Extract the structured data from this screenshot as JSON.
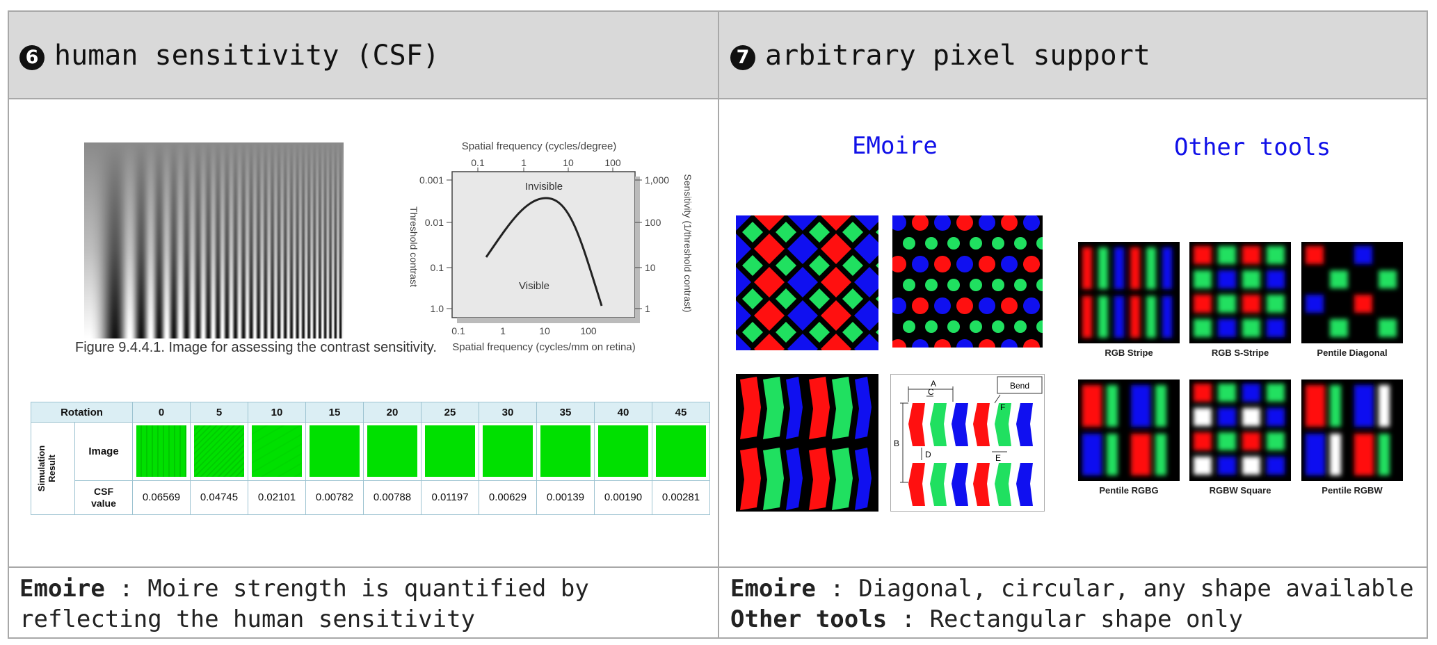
{
  "left_header": {
    "num": "6",
    "title": "human sensitivity (CSF)"
  },
  "right_header": {
    "num": "7",
    "title": "arbitrary pixel support"
  },
  "grating_caption": "Figure 9.4.4.1. Image for assessing the contrast sensitivity.",
  "csf_plot": {
    "top_axis_label": "Spatial frequency (cycles/degree)",
    "top_ticks": [
      "0.1",
      "1",
      "10",
      "100"
    ],
    "bottom_axis_label": "Spatial frequency (cycles/mm on retina)",
    "bottom_ticks": [
      "0.1",
      "1",
      "10",
      "100"
    ],
    "left_axis_label": "Threshold contrast",
    "left_ticks": [
      "0.001",
      "0.01",
      "0.1",
      "1.0"
    ],
    "right_axis_label": "Sensitivity (1/threshold contrast)",
    "right_ticks": [
      "1,000",
      "100",
      "10",
      "1"
    ],
    "region_invisible": "Invisible",
    "region_visible": "Visible"
  },
  "sim_table": {
    "rotation_label": "Rotation",
    "rotations": [
      "0",
      "5",
      "10",
      "15",
      "20",
      "25",
      "30",
      "35",
      "40",
      "45"
    ],
    "group_label": "Simulation Result",
    "image_label": "Image",
    "csf_label_line1": "CSF",
    "csf_label_line2": "value",
    "csf_values": [
      "0.06569",
      "0.04745",
      "0.02101",
      "0.00782",
      "0.00788",
      "0.01197",
      "0.00629",
      "0.00139",
      "0.00190",
      "0.00281"
    ],
    "swatch_color": "#00e000"
  },
  "emoire_heading": "EMoire",
  "other_tools_heading": "Other tools",
  "bend_diagram": {
    "bend": "Bend",
    "A": "A",
    "B": "B",
    "C": "C",
    "D": "D",
    "E": "E",
    "F": "F"
  },
  "other_panels": [
    "RGB Stripe",
    "RGB S-Stripe",
    "Pentile Diagonal",
    "Pentile  RGBG",
    "RGBW Square",
    "Pentile RGBW"
  ],
  "left_footer": {
    "bold": "Emoire",
    "text": " : Moire strength is quantified by reflecting the human sensitivity"
  },
  "right_footer": {
    "line1_bold": "Emoire",
    "line1_text": " : Diagonal, circular, any shape available",
    "line2_bold": "Other tools",
    "line2_text": " : Rectangular shape only"
  },
  "colors": {
    "red": "#ff1010",
    "green": "#20e060",
    "blue": "#1010f0",
    "header_bg": "#d9d9d9",
    "label_blue": "#1010e8"
  }
}
